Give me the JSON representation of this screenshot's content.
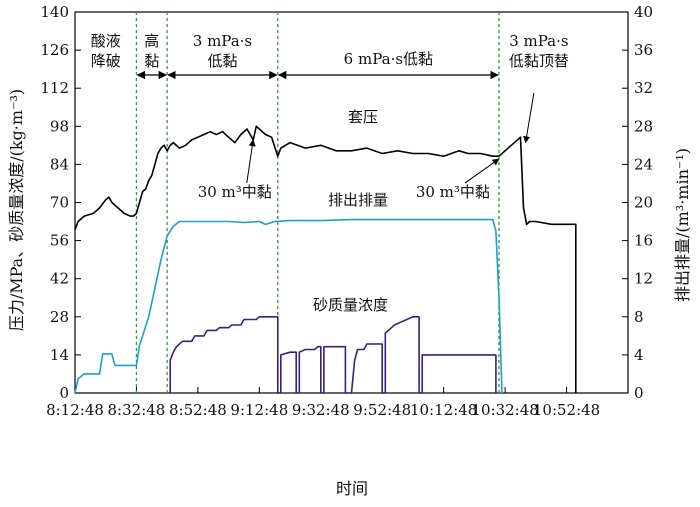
{
  "chart_data": {
    "type": "line",
    "xlabel": "时间",
    "ylabel_left": "压力/MPa、砂质量浓度/(kg·m⁻³)",
    "ylabel_right": "排出排量/(m³·min⁻¹)",
    "x_ticks": [
      "8:12:48",
      "8:32:48",
      "8:52:48",
      "9:12:48",
      "9:32:48",
      "9:52:48",
      "10:12:48",
      "10:32:48",
      "10:52:48"
    ],
    "x_range_min": [
      0,
      180
    ],
    "ylim_left": [
      0,
      140
    ],
    "ylim_right": [
      0,
      40
    ],
    "y_ticks_left": [
      0,
      14,
      28,
      42,
      56,
      70,
      84,
      98,
      112,
      126,
      140
    ],
    "y_ticks_right": [
      0,
      4,
      8,
      12,
      16,
      20,
      24,
      28,
      32,
      36,
      40
    ],
    "stage_lines_min": [
      20,
      30,
      66,
      138
    ],
    "stages": [
      {
        "lines": [
          "酸液",
          "降破"
        ],
        "pos": [
          10,
          0
        ]
      },
      {
        "lines": [
          "高",
          "黏"
        ],
        "pos": [
          25,
          0
        ]
      },
      {
        "lines": [
          "3 mPa·s",
          "低黏"
        ],
        "pos": [
          48,
          0
        ]
      },
      {
        "lines": [
          "6 mPa·s低黏"
        ],
        "pos": [
          102,
          0
        ]
      },
      {
        "lines": [
          "3 mPa·s",
          "低黏顶替"
        ],
        "pos": [
          151,
          0
        ]
      }
    ],
    "labels": {
      "pressure": "套压",
      "rate": "排出排量",
      "sand": "砂质量浓度"
    },
    "annotations": [
      {
        "text": "30 m³中黏",
        "pos": [
          52,
          72
        ],
        "arrow_to": [
          58,
          93
        ]
      },
      {
        "text": "30 m³中黏",
        "pos": [
          123,
          72
        ],
        "arrow_to": [
          138,
          86
        ]
      }
    ],
    "series": [
      {
        "axis": "left",
        "color": "#000000",
        "points": [
          [
            0,
            60
          ],
          [
            1,
            63
          ],
          [
            3,
            65
          ],
          [
            6,
            66
          ],
          [
            8,
            68
          ],
          [
            10,
            71
          ],
          [
            11,
            72
          ],
          [
            12,
            70
          ],
          [
            14,
            68
          ],
          [
            16,
            66
          ],
          [
            18,
            65
          ],
          [
            19,
            65
          ],
          [
            20,
            66
          ],
          [
            21,
            70
          ],
          [
            22,
            74
          ],
          [
            23,
            75
          ],
          [
            24,
            78
          ],
          [
            25,
            80
          ],
          [
            26,
            84
          ],
          [
            27,
            88
          ],
          [
            28,
            90
          ],
          [
            29,
            91
          ],
          [
            30,
            89
          ],
          [
            31,
            91
          ],
          [
            32,
            92
          ],
          [
            34,
            90
          ],
          [
            36,
            91
          ],
          [
            38,
            93
          ],
          [
            40,
            94
          ],
          [
            42,
            95
          ],
          [
            44,
            96
          ],
          [
            46,
            95
          ],
          [
            48,
            96
          ],
          [
            50,
            94
          ],
          [
            52,
            92
          ],
          [
            54,
            95
          ],
          [
            56,
            97
          ],
          [
            58,
            93
          ],
          [
            59,
            98
          ],
          [
            60,
            97
          ],
          [
            62,
            95
          ],
          [
            64,
            94
          ],
          [
            66,
            87
          ],
          [
            67,
            90
          ],
          [
            70,
            92
          ],
          [
            75,
            90
          ],
          [
            80,
            91
          ],
          [
            85,
            89
          ],
          [
            90,
            89
          ],
          [
            95,
            90
          ],
          [
            100,
            88
          ],
          [
            105,
            89
          ],
          [
            110,
            88
          ],
          [
            115,
            88
          ],
          [
            120,
            87
          ],
          [
            125,
            89
          ],
          [
            128,
            88
          ],
          [
            132,
            88
          ],
          [
            136,
            87
          ],
          [
            138,
            87
          ],
          [
            140,
            89
          ],
          [
            142,
            91
          ],
          [
            145,
            94
          ],
          [
            146,
            68
          ],
          [
            147,
            62
          ],
          [
            148,
            63
          ],
          [
            150,
            63
          ],
          [
            155,
            62
          ],
          [
            160,
            62
          ],
          [
            163,
            62
          ],
          [
            163,
            0
          ]
        ]
      },
      {
        "axis": "right",
        "color": "#1e9fd0",
        "points": [
          [
            0,
            0
          ],
          [
            1,
            1.5
          ],
          [
            3,
            2
          ],
          [
            6,
            2
          ],
          [
            8,
            2
          ],
          [
            9,
            4.1
          ],
          [
            12,
            4.1
          ],
          [
            13,
            2.9
          ],
          [
            18,
            2.9
          ],
          [
            20,
            2.9
          ],
          [
            21,
            5
          ],
          [
            22,
            6
          ],
          [
            24,
            8
          ],
          [
            26,
            11
          ],
          [
            28,
            14
          ],
          [
            30,
            16.5
          ],
          [
            32,
            17.5
          ],
          [
            34,
            18
          ],
          [
            40,
            18
          ],
          [
            45,
            18
          ],
          [
            50,
            18
          ],
          [
            55,
            17.9
          ],
          [
            60,
            18
          ],
          [
            62,
            17.7
          ],
          [
            65,
            18
          ],
          [
            70,
            18.1
          ],
          [
            80,
            18.1
          ],
          [
            90,
            18.2
          ],
          [
            100,
            18.2
          ],
          [
            110,
            18.2
          ],
          [
            120,
            18.2
          ],
          [
            130,
            18.2
          ],
          [
            136,
            18.2
          ],
          [
            137,
            17
          ],
          [
            138,
            10
          ],
          [
            139,
            0
          ]
        ]
      },
      {
        "axis": "left",
        "color": "#3b1f7a",
        "points": [
          [
            31,
            0
          ],
          [
            31,
            12
          ],
          [
            32,
            15
          ],
          [
            33,
            17
          ],
          [
            34,
            18
          ],
          [
            35,
            19
          ],
          [
            38,
            19
          ],
          [
            39,
            21
          ],
          [
            42,
            21
          ],
          [
            43,
            23
          ],
          [
            46,
            23
          ],
          [
            47,
            24
          ],
          [
            50,
            24
          ],
          [
            51,
            25
          ],
          [
            54,
            25
          ],
          [
            55,
            27
          ],
          [
            59,
            27
          ],
          [
            60,
            28
          ],
          [
            66,
            28
          ],
          [
            66,
            0
          ],
          [
            67,
            0
          ],
          [
            67,
            14
          ],
          [
            70,
            15
          ],
          [
            72,
            15
          ],
          [
            72,
            0
          ],
          [
            73,
            0
          ],
          [
            73,
            15
          ],
          [
            75,
            16
          ],
          [
            78,
            16
          ],
          [
            79,
            17
          ],
          [
            80,
            17
          ],
          [
            80,
            0
          ],
          [
            81,
            0
          ],
          [
            81,
            17
          ],
          [
            88,
            17
          ],
          [
            88,
            0
          ],
          [
            90,
            0
          ],
          [
            91,
            12
          ],
          [
            92,
            16
          ],
          [
            94,
            16
          ],
          [
            95,
            18
          ],
          [
            100,
            18
          ],
          [
            100,
            0
          ],
          [
            101,
            0
          ],
          [
            101,
            22
          ],
          [
            103,
            24
          ],
          [
            104,
            25
          ],
          [
            106,
            26
          ],
          [
            108,
            27
          ],
          [
            110,
            28
          ],
          [
            112,
            28
          ],
          [
            112,
            0
          ],
          [
            113,
            0
          ],
          [
            113,
            14
          ],
          [
            120,
            14
          ],
          [
            125,
            14
          ],
          [
            130,
            14
          ],
          [
            137,
            14
          ],
          [
            137,
            0
          ]
        ]
      }
    ]
  }
}
